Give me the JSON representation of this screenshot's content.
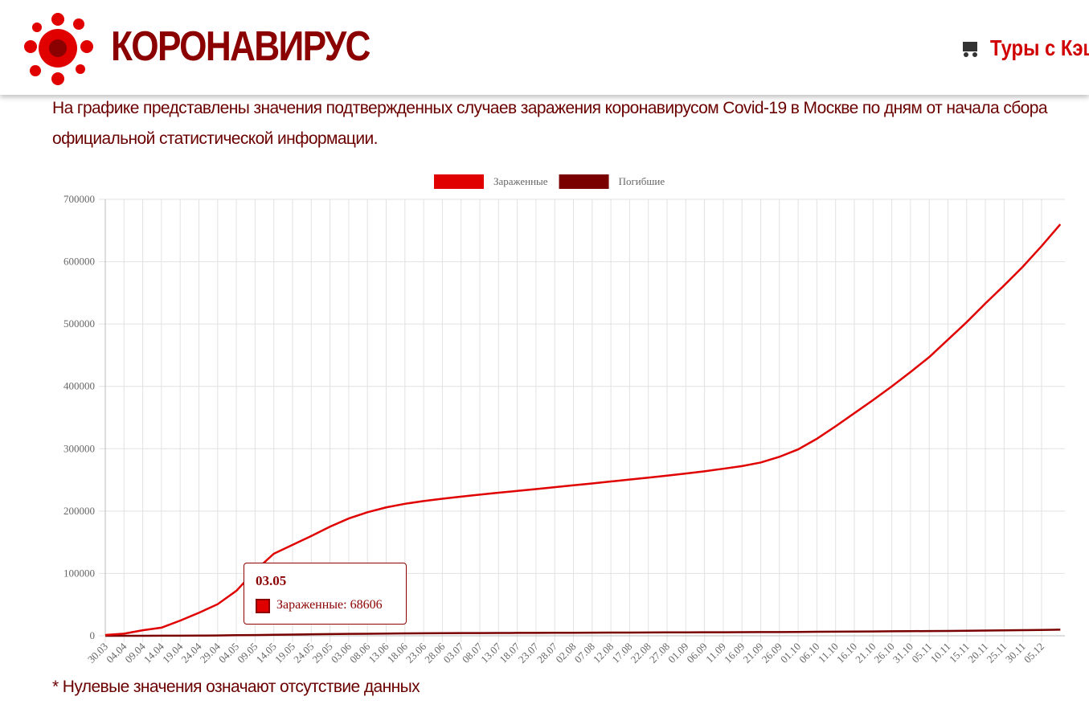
{
  "header": {
    "title": "КОРОНАВИРУС",
    "link": "Туры с Кэш"
  },
  "description": "На графике представлены значения подтвержденных случаев заражения коронавирусом Covid-19 в Москве по дням от начала сбора официальной статистической информации.",
  "footnote": "* Нулевые значения означают отсутствие данных",
  "chart_data": {
    "type": "line",
    "categories": [
      "30.03",
      "04.04",
      "09.04",
      "14.04",
      "19.04",
      "24.04",
      "29.04",
      "04.05",
      "09.05",
      "14.05",
      "19.05",
      "24.05",
      "29.05",
      "03.06",
      "08.06",
      "13.06",
      "18.06",
      "23.06",
      "28.06",
      "03.07",
      "08.07",
      "13.07",
      "18.07",
      "23.07",
      "28.07",
      "02.08",
      "07.08",
      "12.08",
      "17.08",
      "22.08",
      "27.08",
      "01.09",
      "06.09",
      "11.09",
      "16.09",
      "21.09",
      "26.09",
      "01.10",
      "06.10",
      "11.10",
      "16.10",
      "21.10",
      "26.10",
      "31.10",
      "05.11",
      "10.11",
      "15.11",
      "20.11",
      "25.11",
      "30.11",
      "05.12",
      null
    ],
    "series": [
      {
        "name": "Зараженные",
        "color": "#e00000",
        "values": [
          1226,
          3357,
          8852,
          13002,
          24324,
          36897,
          50646,
          72105,
          104189,
          131661,
          145798,
          160002,
          175005,
          188101,
          198116,
          205905,
          211656,
          216129,
          219749,
          223251,
          226406,
          229470,
          232316,
          235286,
          238298,
          241327,
          244342,
          247446,
          250549,
          253664,
          256866,
          260200,
          263800,
          267900,
          272200,
          277900,
          287000,
          299000,
          316000,
          336000,
          357000,
          378000,
          400000,
          423000,
          447000,
          475000,
          503000,
          533000,
          562000,
          592000,
          625000,
          660000
        ]
      },
      {
        "name": "Погибшие",
        "color": "#7a0000",
        "values": [
          0,
          10,
          50,
          100,
          180,
          280,
          500,
          900,
          1200,
          1600,
          2000,
          2400,
          2700,
          3000,
          3200,
          3500,
          3800,
          4000,
          4150,
          4300,
          4400,
          4500,
          4600,
          4700,
          4800,
          4900,
          5000,
          5100,
          5200,
          5300,
          5400,
          5500,
          5600,
          5700,
          5800,
          5900,
          6000,
          6200,
          6400,
          6600,
          6800,
          7000,
          7200,
          7400,
          7600,
          7800,
          8100,
          8400,
          8700,
          9000,
          9400,
          9800
        ]
      }
    ],
    "ylim": [
      0,
      700000
    ],
    "yticks": [
      0,
      100000,
      200000,
      300000,
      400000,
      500000,
      600000,
      700000
    ],
    "grid": true,
    "legend": "top",
    "tooltip": {
      "title": "03.05",
      "text": "Зараженные: 68606"
    }
  }
}
